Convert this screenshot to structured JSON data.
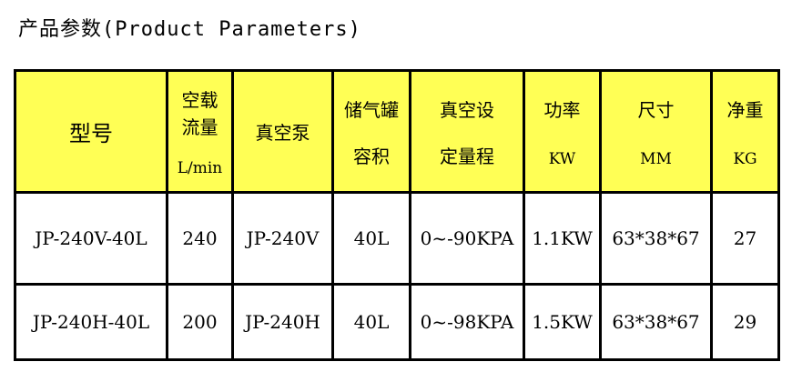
{
  "title": "产品参数(Product Parameters)",
  "header": {
    "model": "型号",
    "flow": "空载流量",
    "flow_unit": "L/min",
    "pump": "真空泵",
    "tank_1": "储气罐",
    "tank_2": "容积",
    "range_1": "真空设",
    "range_2": "定量程",
    "power": "功率",
    "power_unit": "KW",
    "size": "尺寸",
    "size_unit": "MM",
    "weight": "净重",
    "weight_unit": "KG"
  },
  "rows": [
    {
      "model": "JP-240V-40L",
      "flow": "240",
      "pump": "JP-240V",
      "tank": "40L",
      "range": "0~-90KPA",
      "power": "1.1KW",
      "size": "63*38*67",
      "weight": "27"
    },
    {
      "model": "JP-240H-40L",
      "flow": "200",
      "pump": "JP-240H",
      "tank": "40L",
      "range": "0~-98KPA",
      "power": "1.5KW",
      "size": "63*38*67",
      "weight": "29"
    }
  ]
}
